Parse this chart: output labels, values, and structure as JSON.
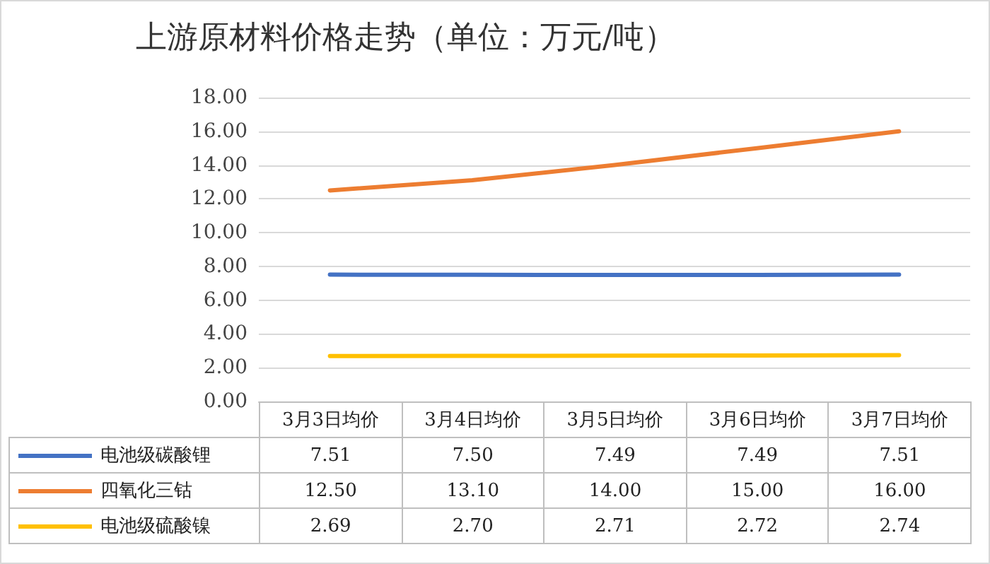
{
  "chart_data": {
    "type": "line",
    "title": "上游原材料价格走势（单位：万元/吨）",
    "categories": [
      "3月3日均价",
      "3月4日均价",
      "3月5日均价",
      "3月6日均价",
      "3月7日均价"
    ],
    "series": [
      {
        "name": "电池级碳酸锂",
        "color": "#4472c4",
        "values": [
          7.51,
          7.5,
          7.49,
          7.49,
          7.51
        ],
        "value_labels": [
          "7.51",
          "7.50",
          "7.49",
          "7.49",
          "7.51"
        ]
      },
      {
        "name": "四氧化三钴",
        "color": "#ed7d31",
        "values": [
          12.5,
          13.1,
          14.0,
          15.0,
          16.0
        ],
        "value_labels": [
          "12.50",
          "13.10",
          "14.00",
          "15.00",
          "16.00"
        ]
      },
      {
        "name": "电池级硫酸镍",
        "color": "#ffc000",
        "values": [
          2.69,
          2.7,
          2.71,
          2.72,
          2.74
        ],
        "value_labels": [
          "2.69",
          "2.70",
          "2.71",
          "2.72",
          "2.74"
        ]
      }
    ],
    "ylim": [
      0,
      18
    ],
    "yticks": [
      {
        "value": 0,
        "label": "0.00"
      },
      {
        "value": 2,
        "label": "2.00"
      },
      {
        "value": 4,
        "label": "4.00"
      },
      {
        "value": 6,
        "label": "6.00"
      },
      {
        "value": 8,
        "label": "8.00"
      },
      {
        "value": 10,
        "label": "10.00"
      },
      {
        "value": 12,
        "label": "12.00"
      },
      {
        "value": 14,
        "label": "14.00"
      },
      {
        "value": 16,
        "label": "16.00"
      },
      {
        "value": 18,
        "label": "18.00"
      }
    ],
    "grid": "y",
    "legend": "bottom",
    "marker": "none",
    "line_style": "solid"
  }
}
